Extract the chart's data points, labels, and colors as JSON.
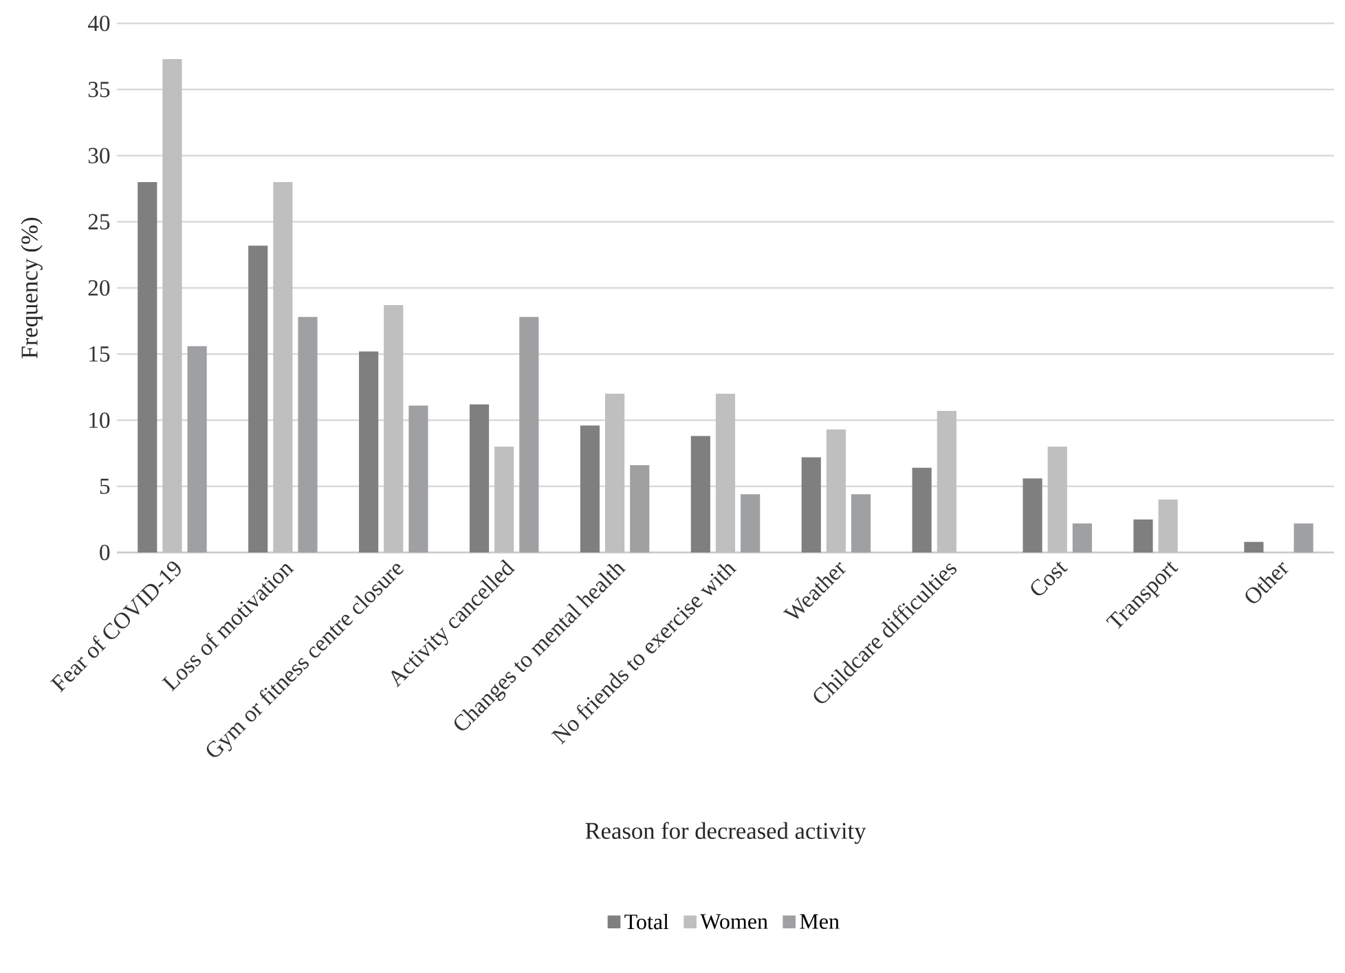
{
  "chart_data": {
    "type": "bar",
    "xlabel": "Reason for decreased activity",
    "ylabel": "Frequency (%)",
    "categories": [
      "Fear of COVID-19",
      "Loss of motivation",
      "Gym or fitness centre closure",
      "Activity cancelled",
      "Changes to mental health",
      "No friends to exercise with",
      "Weather",
      "Childcare difficulties",
      "Cost",
      "Transport",
      "Other"
    ],
    "series": [
      {
        "name": "Total",
        "color": "#7f7f7f",
        "values": [
          28.0,
          23.2,
          15.2,
          11.2,
          9.6,
          8.8,
          7.2,
          6.4,
          5.6,
          2.5,
          0.8
        ]
      },
      {
        "name": "Women",
        "color": "#bfbfbf",
        "values": [
          37.3,
          28.0,
          18.7,
          8.0,
          12.0,
          12.0,
          9.3,
          10.7,
          8.0,
          4.0,
          0
        ]
      },
      {
        "name": "Men",
        "color": "#9fa0a2",
        "values": [
          15.6,
          17.8,
          11.1,
          17.8,
          6.6,
          4.4,
          4.4,
          0,
          2.2,
          0,
          2.2
        ]
      }
    ],
    "ylim": [
      0,
      40
    ],
    "yticks": [
      0,
      5,
      10,
      15,
      20,
      25,
      30,
      35,
      40
    ],
    "grid": "y",
    "legend": "bottom"
  }
}
